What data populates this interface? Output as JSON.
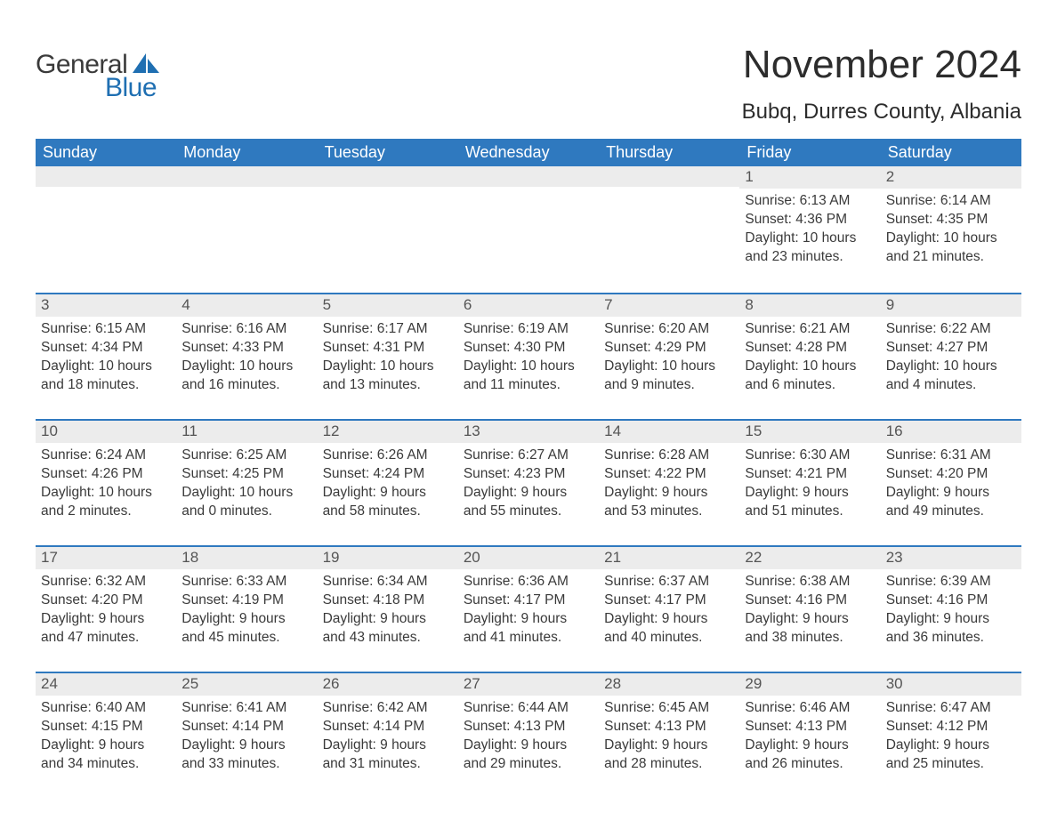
{
  "logo": {
    "text_general": "General",
    "text_blue": "Blue",
    "sail_color": "#1f6fb2"
  },
  "title": "November 2024",
  "location": "Bubq, Durres County, Albania",
  "colors": {
    "header_bg": "#2f79bf",
    "header_text": "#ffffff",
    "row_divider": "#2f79bf",
    "daynum_bg": "#ececec",
    "daynum_text": "#555555",
    "body_text": "#3a3a3a",
    "page_bg": "#ffffff",
    "logo_blue": "#1f6fb2"
  },
  "weekday_labels": [
    "Sunday",
    "Monday",
    "Tuesday",
    "Wednesday",
    "Thursday",
    "Friday",
    "Saturday"
  ],
  "weeks": [
    [
      null,
      null,
      null,
      null,
      null,
      {
        "n": "1",
        "sunrise": "Sunrise: 6:13 AM",
        "sunset": "Sunset: 4:36 PM",
        "daylight": "Daylight: 10 hours and 23 minutes."
      },
      {
        "n": "2",
        "sunrise": "Sunrise: 6:14 AM",
        "sunset": "Sunset: 4:35 PM",
        "daylight": "Daylight: 10 hours and 21 minutes."
      }
    ],
    [
      {
        "n": "3",
        "sunrise": "Sunrise: 6:15 AM",
        "sunset": "Sunset: 4:34 PM",
        "daylight": "Daylight: 10 hours and 18 minutes."
      },
      {
        "n": "4",
        "sunrise": "Sunrise: 6:16 AM",
        "sunset": "Sunset: 4:33 PM",
        "daylight": "Daylight: 10 hours and 16 minutes."
      },
      {
        "n": "5",
        "sunrise": "Sunrise: 6:17 AM",
        "sunset": "Sunset: 4:31 PM",
        "daylight": "Daylight: 10 hours and 13 minutes."
      },
      {
        "n": "6",
        "sunrise": "Sunrise: 6:19 AM",
        "sunset": "Sunset: 4:30 PM",
        "daylight": "Daylight: 10 hours and 11 minutes."
      },
      {
        "n": "7",
        "sunrise": "Sunrise: 6:20 AM",
        "sunset": "Sunset: 4:29 PM",
        "daylight": "Daylight: 10 hours and 9 minutes."
      },
      {
        "n": "8",
        "sunrise": "Sunrise: 6:21 AM",
        "sunset": "Sunset: 4:28 PM",
        "daylight": "Daylight: 10 hours and 6 minutes."
      },
      {
        "n": "9",
        "sunrise": "Sunrise: 6:22 AM",
        "sunset": "Sunset: 4:27 PM",
        "daylight": "Daylight: 10 hours and 4 minutes."
      }
    ],
    [
      {
        "n": "10",
        "sunrise": "Sunrise: 6:24 AM",
        "sunset": "Sunset: 4:26 PM",
        "daylight": "Daylight: 10 hours and 2 minutes."
      },
      {
        "n": "11",
        "sunrise": "Sunrise: 6:25 AM",
        "sunset": "Sunset: 4:25 PM",
        "daylight": "Daylight: 10 hours and 0 minutes."
      },
      {
        "n": "12",
        "sunrise": "Sunrise: 6:26 AM",
        "sunset": "Sunset: 4:24 PM",
        "daylight": "Daylight: 9 hours and 58 minutes."
      },
      {
        "n": "13",
        "sunrise": "Sunrise: 6:27 AM",
        "sunset": "Sunset: 4:23 PM",
        "daylight": "Daylight: 9 hours and 55 minutes."
      },
      {
        "n": "14",
        "sunrise": "Sunrise: 6:28 AM",
        "sunset": "Sunset: 4:22 PM",
        "daylight": "Daylight: 9 hours and 53 minutes."
      },
      {
        "n": "15",
        "sunrise": "Sunrise: 6:30 AM",
        "sunset": "Sunset: 4:21 PM",
        "daylight": "Daylight: 9 hours and 51 minutes."
      },
      {
        "n": "16",
        "sunrise": "Sunrise: 6:31 AM",
        "sunset": "Sunset: 4:20 PM",
        "daylight": "Daylight: 9 hours and 49 minutes."
      }
    ],
    [
      {
        "n": "17",
        "sunrise": "Sunrise: 6:32 AM",
        "sunset": "Sunset: 4:20 PM",
        "daylight": "Daylight: 9 hours and 47 minutes."
      },
      {
        "n": "18",
        "sunrise": "Sunrise: 6:33 AM",
        "sunset": "Sunset: 4:19 PM",
        "daylight": "Daylight: 9 hours and 45 minutes."
      },
      {
        "n": "19",
        "sunrise": "Sunrise: 6:34 AM",
        "sunset": "Sunset: 4:18 PM",
        "daylight": "Daylight: 9 hours and 43 minutes."
      },
      {
        "n": "20",
        "sunrise": "Sunrise: 6:36 AM",
        "sunset": "Sunset: 4:17 PM",
        "daylight": "Daylight: 9 hours and 41 minutes."
      },
      {
        "n": "21",
        "sunrise": "Sunrise: 6:37 AM",
        "sunset": "Sunset: 4:17 PM",
        "daylight": "Daylight: 9 hours and 40 minutes."
      },
      {
        "n": "22",
        "sunrise": "Sunrise: 6:38 AM",
        "sunset": "Sunset: 4:16 PM",
        "daylight": "Daylight: 9 hours and 38 minutes."
      },
      {
        "n": "23",
        "sunrise": "Sunrise: 6:39 AM",
        "sunset": "Sunset: 4:16 PM",
        "daylight": "Daylight: 9 hours and 36 minutes."
      }
    ],
    [
      {
        "n": "24",
        "sunrise": "Sunrise: 6:40 AM",
        "sunset": "Sunset: 4:15 PM",
        "daylight": "Daylight: 9 hours and 34 minutes."
      },
      {
        "n": "25",
        "sunrise": "Sunrise: 6:41 AM",
        "sunset": "Sunset: 4:14 PM",
        "daylight": "Daylight: 9 hours and 33 minutes."
      },
      {
        "n": "26",
        "sunrise": "Sunrise: 6:42 AM",
        "sunset": "Sunset: 4:14 PM",
        "daylight": "Daylight: 9 hours and 31 minutes."
      },
      {
        "n": "27",
        "sunrise": "Sunrise: 6:44 AM",
        "sunset": "Sunset: 4:13 PM",
        "daylight": "Daylight: 9 hours and 29 minutes."
      },
      {
        "n": "28",
        "sunrise": "Sunrise: 6:45 AM",
        "sunset": "Sunset: 4:13 PM",
        "daylight": "Daylight: 9 hours and 28 minutes."
      },
      {
        "n": "29",
        "sunrise": "Sunrise: 6:46 AM",
        "sunset": "Sunset: 4:13 PM",
        "daylight": "Daylight: 9 hours and 26 minutes."
      },
      {
        "n": "30",
        "sunrise": "Sunrise: 6:47 AM",
        "sunset": "Sunset: 4:12 PM",
        "daylight": "Daylight: 9 hours and 25 minutes."
      }
    ]
  ]
}
